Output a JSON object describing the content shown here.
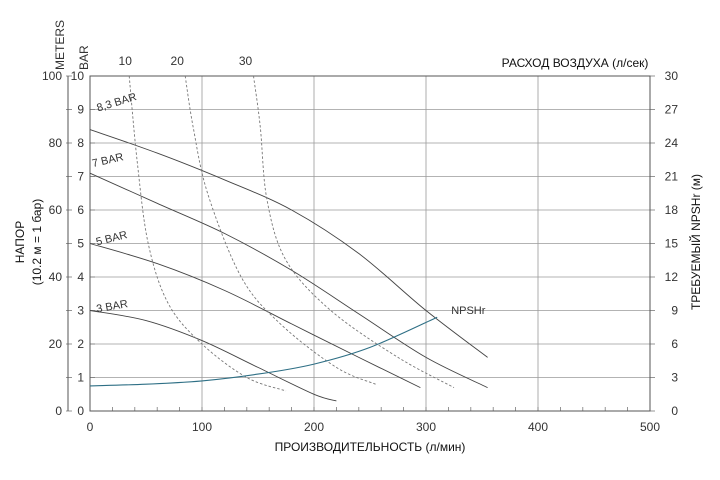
{
  "chart_data": {
    "type": "line",
    "x_axis": {
      "label": "ПРОИЗВОДИТЕЛЬНОСТЬ (л/мин)",
      "range": [
        0,
        500
      ],
      "ticks": [
        0,
        100,
        200,
        300,
        400,
        500
      ]
    },
    "y_axis_meters": {
      "label": "METERS",
      "range": [
        0,
        100
      ],
      "ticks": [
        0,
        20,
        40,
        60,
        80,
        100
      ]
    },
    "y_axis_bar": {
      "label": "BAR",
      "range": [
        0,
        10
      ],
      "ticks": [
        0,
        1,
        2,
        3,
        4,
        5,
        6,
        7,
        8,
        9,
        10
      ]
    },
    "y_axis_left_title": {
      "line1": "НАПОР",
      "line2": "(10.2 м = 1 бар)"
    },
    "y_axis_right": {
      "label": "ТРЕБУЕМЫЙ NPSHr (м)",
      "range": [
        0,
        30
      ],
      "ticks": [
        0,
        3,
        6,
        9,
        12,
        15,
        18,
        21,
        24,
        27,
        30
      ]
    },
    "top_axis": {
      "label": "РАСХОД ВОЗДУХА (л/сек)",
      "ticks": [
        "10",
        "20",
        "30"
      ]
    },
    "series": [
      {
        "name": "8,3 BAR",
        "kind": "pump",
        "x": [
          0,
          60,
          120,
          180,
          240,
          300,
          355
        ],
        "y": [
          8.4,
          7.7,
          6.9,
          6.0,
          4.7,
          3.0,
          1.6
        ]
      },
      {
        "name": "7 BAR",
        "kind": "pump",
        "x": [
          0,
          60,
          120,
          180,
          240,
          300,
          355
        ],
        "y": [
          7.1,
          6.2,
          5.3,
          4.2,
          2.9,
          1.6,
          0.7
        ]
      },
      {
        "name": "5 BAR",
        "kind": "pump",
        "x": [
          0,
          60,
          120,
          180,
          240,
          295
        ],
        "y": [
          5.0,
          4.4,
          3.6,
          2.6,
          1.6,
          0.7
        ]
      },
      {
        "name": "3 BAR",
        "kind": "pump",
        "x": [
          0,
          50,
          100,
          150,
          200,
          220
        ],
        "y": [
          3.0,
          2.7,
          2.1,
          1.3,
          0.5,
          0.3
        ]
      },
      {
        "name": "10",
        "kind": "air",
        "x": [
          35,
          42,
          52,
          70,
          100,
          140,
          175
        ],
        "y": [
          10,
          7.5,
          5.0,
          3.2,
          2.0,
          1.0,
          0.6
        ]
      },
      {
        "name": "20",
        "kind": "air",
        "x": [
          85,
          92,
          105,
          135,
          170,
          220,
          255
        ],
        "y": [
          10,
          8.5,
          6.5,
          4.0,
          2.6,
          1.3,
          0.8
        ]
      },
      {
        "name": "30",
        "kind": "air",
        "x": [
          146,
          152,
          158,
          175,
          215,
          275,
          325
        ],
        "y": [
          10,
          8.5,
          6.3,
          4.5,
          3.0,
          1.6,
          0.7
        ]
      },
      {
        "name": "NPSHr",
        "kind": "npsh",
        "x": [
          0,
          50,
          100,
          150,
          200,
          250,
          310
        ],
        "y": [
          0.75,
          0.8,
          0.9,
          1.1,
          1.4,
          1.9,
          2.8
        ]
      }
    ]
  }
}
